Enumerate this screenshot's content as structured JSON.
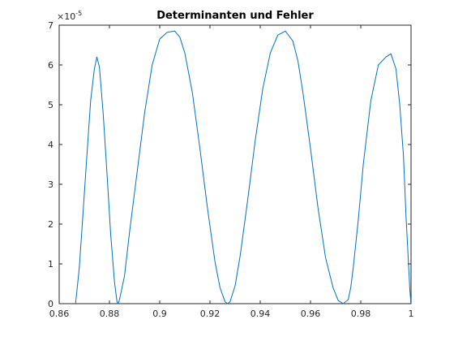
{
  "chart_data": {
    "type": "line",
    "title": "Determinanten und Fehler",
    "xlabel": "",
    "ylabel": "",
    "xlim": [
      0.86,
      1.0
    ],
    "ylim": [
      0,
      7e-05
    ],
    "y_exponent_label": "×10",
    "y_exponent_value": "-5",
    "x_ticks": [
      0.86,
      0.88,
      0.9,
      0.92,
      0.94,
      0.96,
      0.98,
      1.0
    ],
    "x_tick_labels": [
      "0.86",
      "0.88",
      "0.9",
      "0.92",
      "0.94",
      "0.96",
      "0.98",
      "1"
    ],
    "y_ticks": [
      0,
      1e-05,
      2e-05,
      3e-05,
      4e-05,
      5e-05,
      6e-05,
      7e-05
    ],
    "y_tick_labels": [
      "0",
      "1",
      "2",
      "3",
      "4",
      "5",
      "6",
      "7"
    ],
    "grid": false,
    "box": true,
    "series": [
      {
        "color": "#0072bd",
        "x": [
          0.8665,
          0.868,
          0.8695,
          0.871,
          0.8725,
          0.874,
          0.875,
          0.876,
          0.8775,
          0.879,
          0.8805,
          0.882,
          0.883,
          0.8835,
          0.884,
          0.886,
          0.888,
          0.891,
          0.894,
          0.897,
          0.9,
          0.903,
          0.906,
          0.908,
          0.91,
          0.913,
          0.916,
          0.919,
          0.922,
          0.924,
          0.926,
          0.927,
          0.928,
          0.93,
          0.932,
          0.935,
          0.938,
          0.941,
          0.944,
          0.947,
          0.95,
          0.953,
          0.955,
          0.957,
          0.96,
          0.963,
          0.966,
          0.969,
          0.971,
          0.973,
          0.975,
          0.976,
          0.977,
          0.979,
          0.981,
          0.984,
          0.987,
          0.99,
          0.992,
          0.994,
          0.9955,
          0.997,
          0.998,
          0.999,
          0.9995,
          1.0
        ],
        "y": [
          0,
          9e-06,
          2.3e-05,
          3.7e-05,
          5.1e-05,
          5.9e-05,
          6.2e-05,
          5.95e-05,
          4.8e-05,
          3.3e-05,
          1.75e-05,
          5.5e-06,
          5e-07,
          0,
          1e-06,
          7e-06,
          1.8e-05,
          3.3e-05,
          4.8e-05,
          6e-05,
          6.65e-05,
          6.82e-05,
          6.85e-05,
          6.7e-05,
          6.3e-05,
          5.3e-05,
          3.9e-05,
          2.4e-05,
          1.05e-05,
          4e-06,
          5e-07,
          0,
          5e-07,
          4.5e-06,
          1.2e-05,
          2.6e-05,
          4.1e-05,
          5.4e-05,
          6.3e-05,
          6.75e-05,
          6.85e-05,
          6.6e-05,
          6.1e-05,
          5.3e-05,
          3.9e-05,
          2.4e-05,
          1.15e-05,
          4e-06,
          8e-07,
          0,
          1e-06,
          4e-06,
          9e-06,
          2.1e-05,
          3.5e-05,
          5.1e-05,
          6e-05,
          6.2e-05,
          6.28e-05,
          5.9e-05,
          5e-05,
          3.7e-05,
          2.2e-05,
          1e-05,
          3.5e-06,
          0
        ]
      }
    ]
  }
}
